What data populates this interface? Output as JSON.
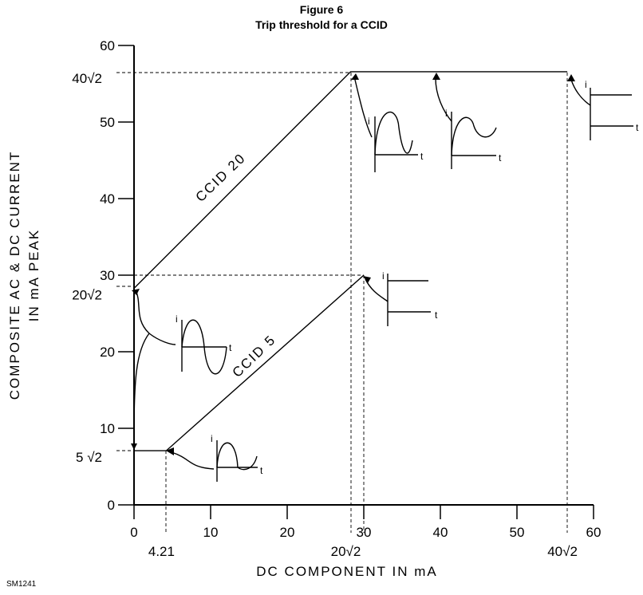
{
  "figure": {
    "title": "Figure 6",
    "subtitle": "Trip threshold for a CCID",
    "code": "SM1241"
  },
  "chart_data": {
    "type": "line",
    "title": "Figure 6",
    "subtitle": "Trip threshold for a CCID",
    "xlabel": "DC COMPONENT IN mA",
    "ylabel_line1": "COMPOSITE AC & DC CURRENT",
    "ylabel_line2": "IN mA PEAK",
    "xlim": [
      0,
      60
    ],
    "ylim": [
      0,
      60
    ],
    "x_ticks": [
      "0",
      "10",
      "20",
      "30",
      "40",
      "50",
      "60"
    ],
    "y_ticks": [
      "0",
      "10",
      "20",
      "30",
      "40",
      "50",
      "60"
    ],
    "special_x_labels": [
      {
        "value": 4.21,
        "label": "4.21"
      },
      {
        "value": 28.28,
        "label": "20√2"
      },
      {
        "value": 56.57,
        "label": "40√2"
      }
    ],
    "special_y_labels": [
      {
        "value": 7.07,
        "label": "5 √2"
      },
      {
        "value": 28.28,
        "label": "20√2"
      },
      {
        "value": 56.57,
        "label": "40√2"
      }
    ],
    "series": [
      {
        "name": "CCID 20",
        "x": [
          0,
          28.28,
          56.57
        ],
        "y": [
          28.28,
          56.57,
          56.57
        ]
      },
      {
        "name": "CCID 5",
        "x": [
          0,
          4.21,
          30
        ],
        "y": [
          7.07,
          7.07,
          30
        ]
      }
    ],
    "grid": false
  },
  "series_labels": {
    "ccid20": "CCID 20",
    "ccid5": "CCID 5"
  },
  "glyphs": {
    "current": "i",
    "time": "t"
  }
}
